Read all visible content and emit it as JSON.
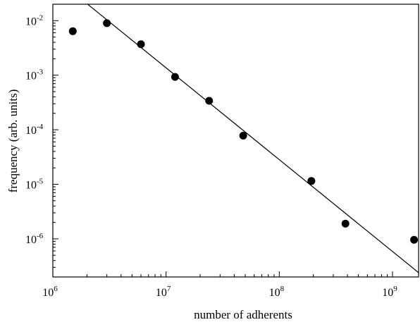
{
  "chart_data": {
    "type": "scatter",
    "title": "",
    "xlabel": "number of adherents",
    "ylabel": "frequency (arb. units)",
    "xscale": "log",
    "yscale": "log",
    "xlim": [
      1000000,
      1700000000
    ],
    "ylim": [
      2e-07,
      0.02
    ],
    "grid": false,
    "legend": "none",
    "x_ticks": [
      {
        "base": "10",
        "exp": "6",
        "value": 1000000
      },
      {
        "base": "10",
        "exp": "7",
        "value": 10000000
      },
      {
        "base": "10",
        "exp": "8",
        "value": 100000000
      },
      {
        "base": "10",
        "exp": "9",
        "value": 1000000000
      }
    ],
    "y_ticks": [
      {
        "base": "10",
        "exp": "-2",
        "value": 0.01
      },
      {
        "base": "10",
        "exp": "-3",
        "value": 0.001
      },
      {
        "base": "10",
        "exp": "-4",
        "value": 0.0001
      },
      {
        "base": "10",
        "exp": "-5",
        "value": 1e-05
      },
      {
        "base": "10",
        "exp": "-6",
        "value": 1e-06
      }
    ],
    "series": [
      {
        "points": [
          {
            "x": 1500000,
            "y": 0.0064
          },
          {
            "x": 3000000,
            "y": 0.009
          },
          {
            "x": 6000000,
            "y": 0.0037
          },
          {
            "x": 12000000,
            "y": 0.00093
          },
          {
            "x": 24000000,
            "y": 0.00034
          },
          {
            "x": 48000000,
            "y": 7.8e-05
          },
          {
            "x": 192000000,
            "y": 1.15e-05
          },
          {
            "x": 384000000,
            "y": 1.9e-06
          },
          {
            "x": 1550000000,
            "y": 9.6e-07
          }
        ],
        "color": "#000000"
      }
    ],
    "fit_line": {
      "points": [
        {
          "x": 2000000,
          "y": 0.0205
        },
        {
          "x": 1700000000,
          "y": 2.4e-07
        }
      ],
      "color": "#000000"
    }
  }
}
